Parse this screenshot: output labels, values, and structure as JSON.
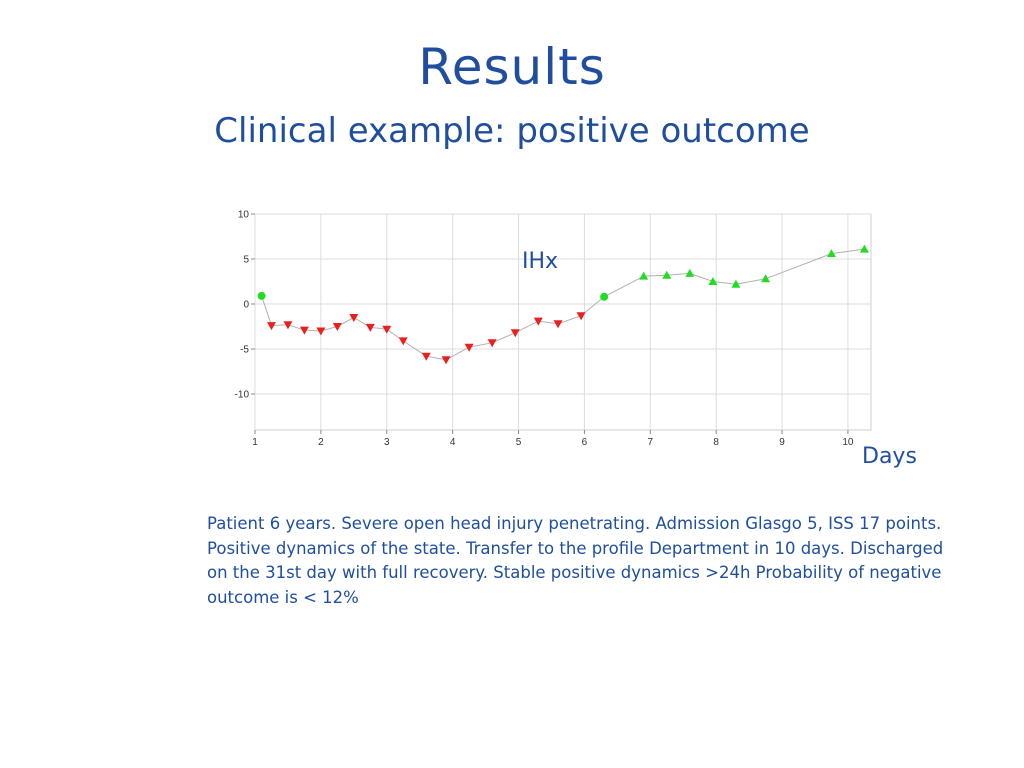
{
  "slide": {
    "title": "Results",
    "subtitle": "Clinical example: positive outcome",
    "description_lines": [
      "Patient 6 years. Severe open head injury penetrating. Admission Glasgo 5, ISS 17 points.",
      "Positive dynamics of the state. Transfer to the profile Department in 10 days. Discharged",
      "on the 31st day with full recovery.  Stable positive dynamics >24h  Probability of negative",
      "outcome is  < 12%"
    ]
  },
  "chart_data": {
    "type": "scatter",
    "title": "",
    "xlabel": "Days",
    "ylabel": "",
    "xlim": [
      1,
      10.35
    ],
    "ylim": [
      -14,
      10
    ],
    "xticks": [
      "1",
      "2",
      "3",
      "4",
      "5",
      "6",
      "7",
      "8",
      "9",
      "10"
    ],
    "yticks": [
      "10",
      "5",
      "0",
      "-5",
      "-10"
    ],
    "grid": true,
    "series_label": "IHx",
    "colors": {
      "positive": "#22dd22",
      "negative": "#e82020",
      "neutral": "#22dd22",
      "line": "#b0b0b0",
      "grid": "#dcdcdc",
      "text_accent": "#1f4e9f"
    },
    "points": [
      {
        "x": 1.1,
        "y": 0.9,
        "marker": "circle",
        "status": "neutral"
      },
      {
        "x": 1.25,
        "y": -2.4,
        "marker": "down",
        "status": "negative"
      },
      {
        "x": 1.5,
        "y": -2.3,
        "marker": "down",
        "status": "negative"
      },
      {
        "x": 1.75,
        "y": -2.9,
        "marker": "down",
        "status": "negative"
      },
      {
        "x": 2.0,
        "y": -3.0,
        "marker": "down",
        "status": "negative"
      },
      {
        "x": 2.25,
        "y": -2.5,
        "marker": "down",
        "status": "negative"
      },
      {
        "x": 2.5,
        "y": -1.5,
        "marker": "down",
        "status": "negative"
      },
      {
        "x": 2.75,
        "y": -2.6,
        "marker": "down",
        "status": "negative"
      },
      {
        "x": 3.0,
        "y": -2.8,
        "marker": "down",
        "status": "negative"
      },
      {
        "x": 3.25,
        "y": -4.1,
        "marker": "down",
        "status": "negative"
      },
      {
        "x": 3.6,
        "y": -5.8,
        "marker": "down",
        "status": "negative"
      },
      {
        "x": 3.9,
        "y": -6.2,
        "marker": "down",
        "status": "negative"
      },
      {
        "x": 4.25,
        "y": -4.8,
        "marker": "down",
        "status": "negative"
      },
      {
        "x": 4.6,
        "y": -4.3,
        "marker": "down",
        "status": "negative"
      },
      {
        "x": 4.95,
        "y": -3.2,
        "marker": "down",
        "status": "negative"
      },
      {
        "x": 5.3,
        "y": -1.9,
        "marker": "down",
        "status": "negative"
      },
      {
        "x": 5.6,
        "y": -2.2,
        "marker": "down",
        "status": "negative"
      },
      {
        "x": 5.95,
        "y": -1.3,
        "marker": "down",
        "status": "negative"
      },
      {
        "x": 6.3,
        "y": 0.8,
        "marker": "circle",
        "status": "neutral"
      },
      {
        "x": 6.9,
        "y": 3.1,
        "marker": "up",
        "status": "positive"
      },
      {
        "x": 7.25,
        "y": 3.2,
        "marker": "up",
        "status": "positive"
      },
      {
        "x": 7.6,
        "y": 3.4,
        "marker": "up",
        "status": "positive"
      },
      {
        "x": 7.95,
        "y": 2.5,
        "marker": "up",
        "status": "positive"
      },
      {
        "x": 8.3,
        "y": 2.2,
        "marker": "up",
        "status": "positive"
      },
      {
        "x": 8.75,
        "y": 2.8,
        "marker": "up",
        "status": "positive"
      },
      {
        "x": 9.75,
        "y": 5.6,
        "marker": "up",
        "status": "positive"
      },
      {
        "x": 10.25,
        "y": 6.1,
        "marker": "up",
        "status": "positive"
      }
    ]
  }
}
